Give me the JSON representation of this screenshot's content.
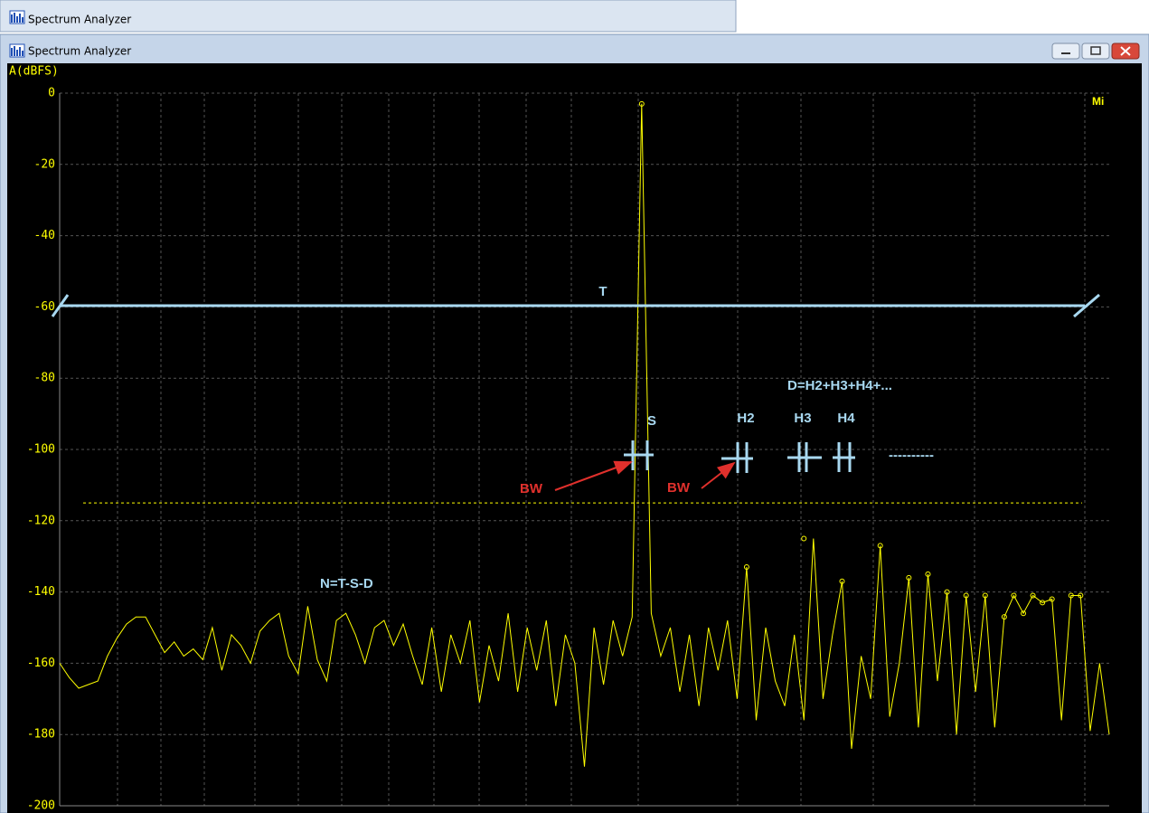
{
  "window_back": {
    "title": "Spectrum Analyzer"
  },
  "window": {
    "title": "Spectrum Analyzer"
  },
  "chart_data": {
    "type": "line",
    "y_label": "A(dBFS)",
    "ylim": [
      -200,
      0
    ],
    "yticks": [
      -200,
      -180,
      -160,
      -140,
      -120,
      -100,
      -80,
      -60,
      -40,
      -20,
      0
    ],
    "grid": true,
    "threshold": -115,
    "series": [
      {
        "color": "#ffff00",
        "values": [
          -160,
          -164,
          -167,
          -166,
          -165,
          -158,
          -153,
          -149,
          -147,
          -147,
          -152,
          -157,
          -154,
          -158,
          -156,
          -159,
          -150,
          -162,
          -152,
          -155,
          -160,
          -151,
          -148,
          -146,
          -158,
          -163,
          -144,
          -159,
          -165,
          -148,
          -146,
          -152,
          -160,
          -150,
          -148,
          -155,
          -149,
          -158,
          -166,
          -150,
          -168,
          -152,
          -160,
          -148,
          -171,
          -155,
          -165,
          -146,
          -168,
          -150,
          -162,
          -148,
          -172,
          -152,
          -160,
          -189,
          -150,
          -166,
          -148,
          -158,
          -147,
          -3,
          -146,
          -158,
          -150,
          -168,
          -152,
          -172,
          -150,
          -162,
          -148,
          -170,
          -133,
          -176,
          -150,
          -165,
          -172,
          -152,
          -176,
          -125,
          -170,
          -152,
          -137,
          -184,
          -158,
          -170,
          -127,
          -175,
          -160,
          -136,
          -178,
          -135,
          -165,
          -140,
          -180,
          -141,
          -168,
          -141,
          -178,
          -147,
          -141,
          -146,
          -141,
          -143,
          -142,
          -176,
          -141,
          -141,
          -179,
          -160,
          -180
        ]
      },
      {
        "color": "#ffff00",
        "marker": "circle",
        "values": [
          null,
          null,
          null,
          null,
          null,
          null,
          null,
          null,
          null,
          null,
          null,
          null,
          null,
          null,
          null,
          null,
          null,
          null,
          null,
          null,
          null,
          null,
          null,
          null,
          null,
          null,
          null,
          null,
          null,
          null,
          null,
          null,
          null,
          null,
          null,
          null,
          null,
          null,
          null,
          null,
          null,
          null,
          null,
          null,
          null,
          null,
          null,
          null,
          null,
          null,
          null,
          null,
          null,
          null,
          null,
          null,
          null,
          null,
          null,
          null,
          null,
          -3,
          null,
          null,
          null,
          null,
          null,
          null,
          null,
          null,
          null,
          null,
          -133,
          null,
          null,
          null,
          null,
          null,
          -125,
          null,
          null,
          null,
          -137,
          null,
          null,
          null,
          -127,
          null,
          null,
          -136,
          null,
          -135,
          null,
          -140,
          null,
          -141,
          null,
          -141,
          null,
          -147,
          -141,
          -146,
          -141,
          -143,
          -142,
          null,
          -141,
          -141,
          null,
          null,
          null
        ]
      }
    ],
    "annotations": {
      "mode": "Mi",
      "total": "T",
      "signal": "S",
      "h2": "H2",
      "h3": "H3",
      "h4": "H4",
      "distortion": "D=H2+H3+H4+...",
      "noise": "N=T-S-D",
      "bw_1": "BW",
      "bw_2": "BW",
      "more": "----------"
    }
  }
}
